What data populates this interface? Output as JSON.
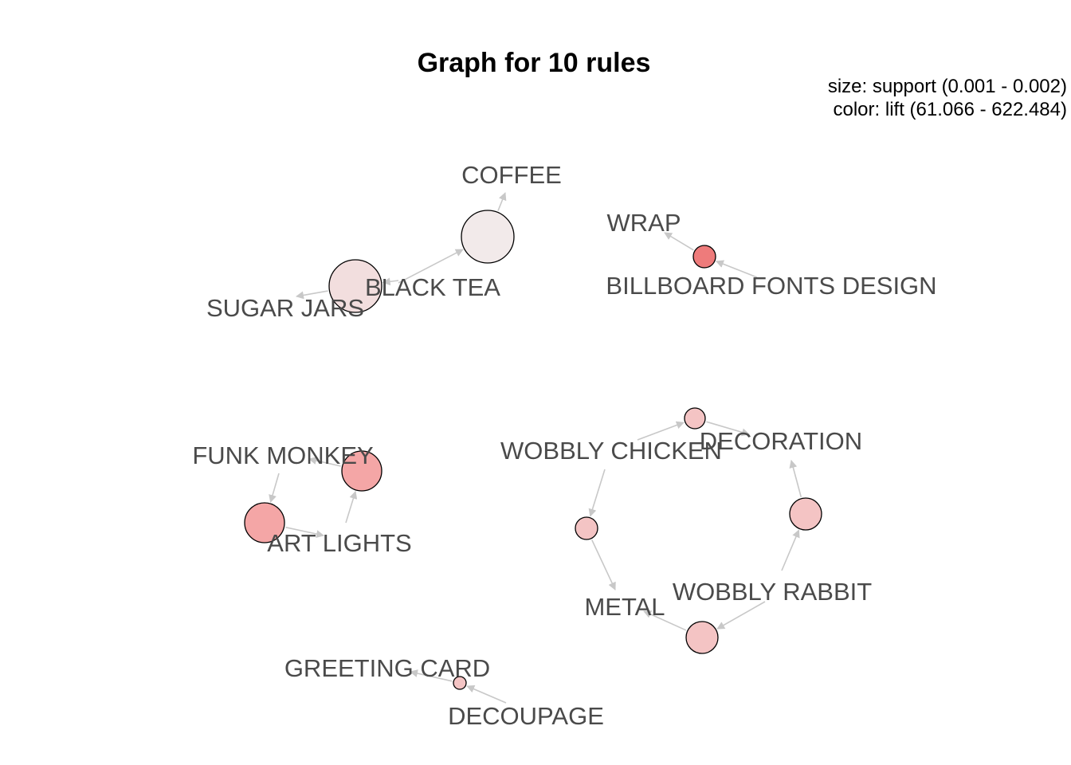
{
  "graph": {
    "title": "Graph for 10 rules",
    "legend": {
      "size_line": "size: support (0.001 - 0.002)",
      "color_line": "color: lift (61.066 - 622.484)"
    },
    "items": [
      {
        "id": "coffee",
        "label": "COFFEE"
      },
      {
        "id": "black-tea",
        "label": "BLACK TEA"
      },
      {
        "id": "sugar-jars",
        "label": "SUGAR JARS"
      },
      {
        "id": "wrap",
        "label": "WRAP"
      },
      {
        "id": "billboard-fonts-design",
        "label": "BILLBOARD FONTS DESIGN"
      },
      {
        "id": "funk-monkey",
        "label": "FUNK MONKEY"
      },
      {
        "id": "art-lights",
        "label": "ART LIGHTS"
      },
      {
        "id": "wobbly-chicken",
        "label": "WOBBLY CHICKEN"
      },
      {
        "id": "decoration",
        "label": "DECORATION"
      },
      {
        "id": "metal",
        "label": "METAL"
      },
      {
        "id": "wobbly-rabbit",
        "label": "WOBBLY RABBIT"
      },
      {
        "id": "greeting-card",
        "label": "GREETING CARD"
      },
      {
        "id": "decoupage",
        "label": "DECOUPAGE"
      }
    ],
    "rules": [
      {
        "id": "rule-1",
        "from": "black-tea",
        "to": "coffee",
        "color": "#f2eaea"
      },
      {
        "id": "rule-2",
        "from": "black-tea",
        "to": "sugar-jars",
        "color": "#f2dede"
      },
      {
        "id": "rule-3",
        "from": "billboard-fonts-design",
        "to": "wrap",
        "color": "#ee7b7b"
      },
      {
        "id": "rule-4",
        "from": "art-lights",
        "to": "funk-monkey",
        "color": "#f4a6a6"
      },
      {
        "id": "rule-5",
        "from": "funk-monkey",
        "to": "art-lights",
        "color": "#f4a6a6"
      },
      {
        "id": "rule-6",
        "from": "wobbly-chicken",
        "to": "decoration",
        "color": "#f4c4c4"
      },
      {
        "id": "rule-7",
        "from": "wobbly-rabbit",
        "to": "decoration",
        "color": "#f4c4c4"
      },
      {
        "id": "rule-8",
        "from": "wobbly-chicken",
        "to": "metal",
        "color": "#f4c4c4"
      },
      {
        "id": "rule-9",
        "from": "wobbly-rabbit",
        "to": "metal",
        "color": "#f4c4c4"
      },
      {
        "id": "rule-10",
        "from": "decoupage",
        "to": "greeting-card",
        "color": "#f4c4c4"
      }
    ]
  }
}
